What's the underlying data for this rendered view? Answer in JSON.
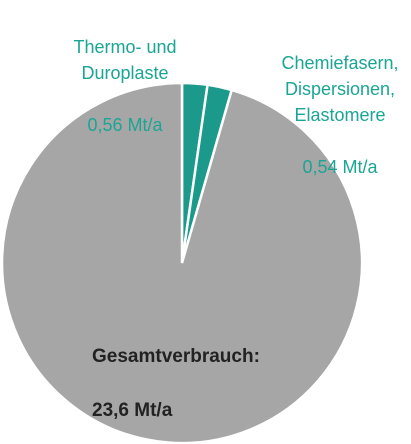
{
  "chart_data": {
    "type": "pie",
    "categories": [
      "Thermo- und\nDuroplaste",
      "Chemiefasern,\nDispersionen,\nElastomere",
      "Gesamtverbrauch:"
    ],
    "values": [
      0.56,
      0.54,
      23.6
    ],
    "value_labels": [
      "0,56 Mt/a",
      "0,54 Mt/a",
      "23,6 Mt/a"
    ],
    "colors": [
      "#1b9a8b",
      "#1b9a8b",
      "#a6a6a6"
    ]
  }
}
